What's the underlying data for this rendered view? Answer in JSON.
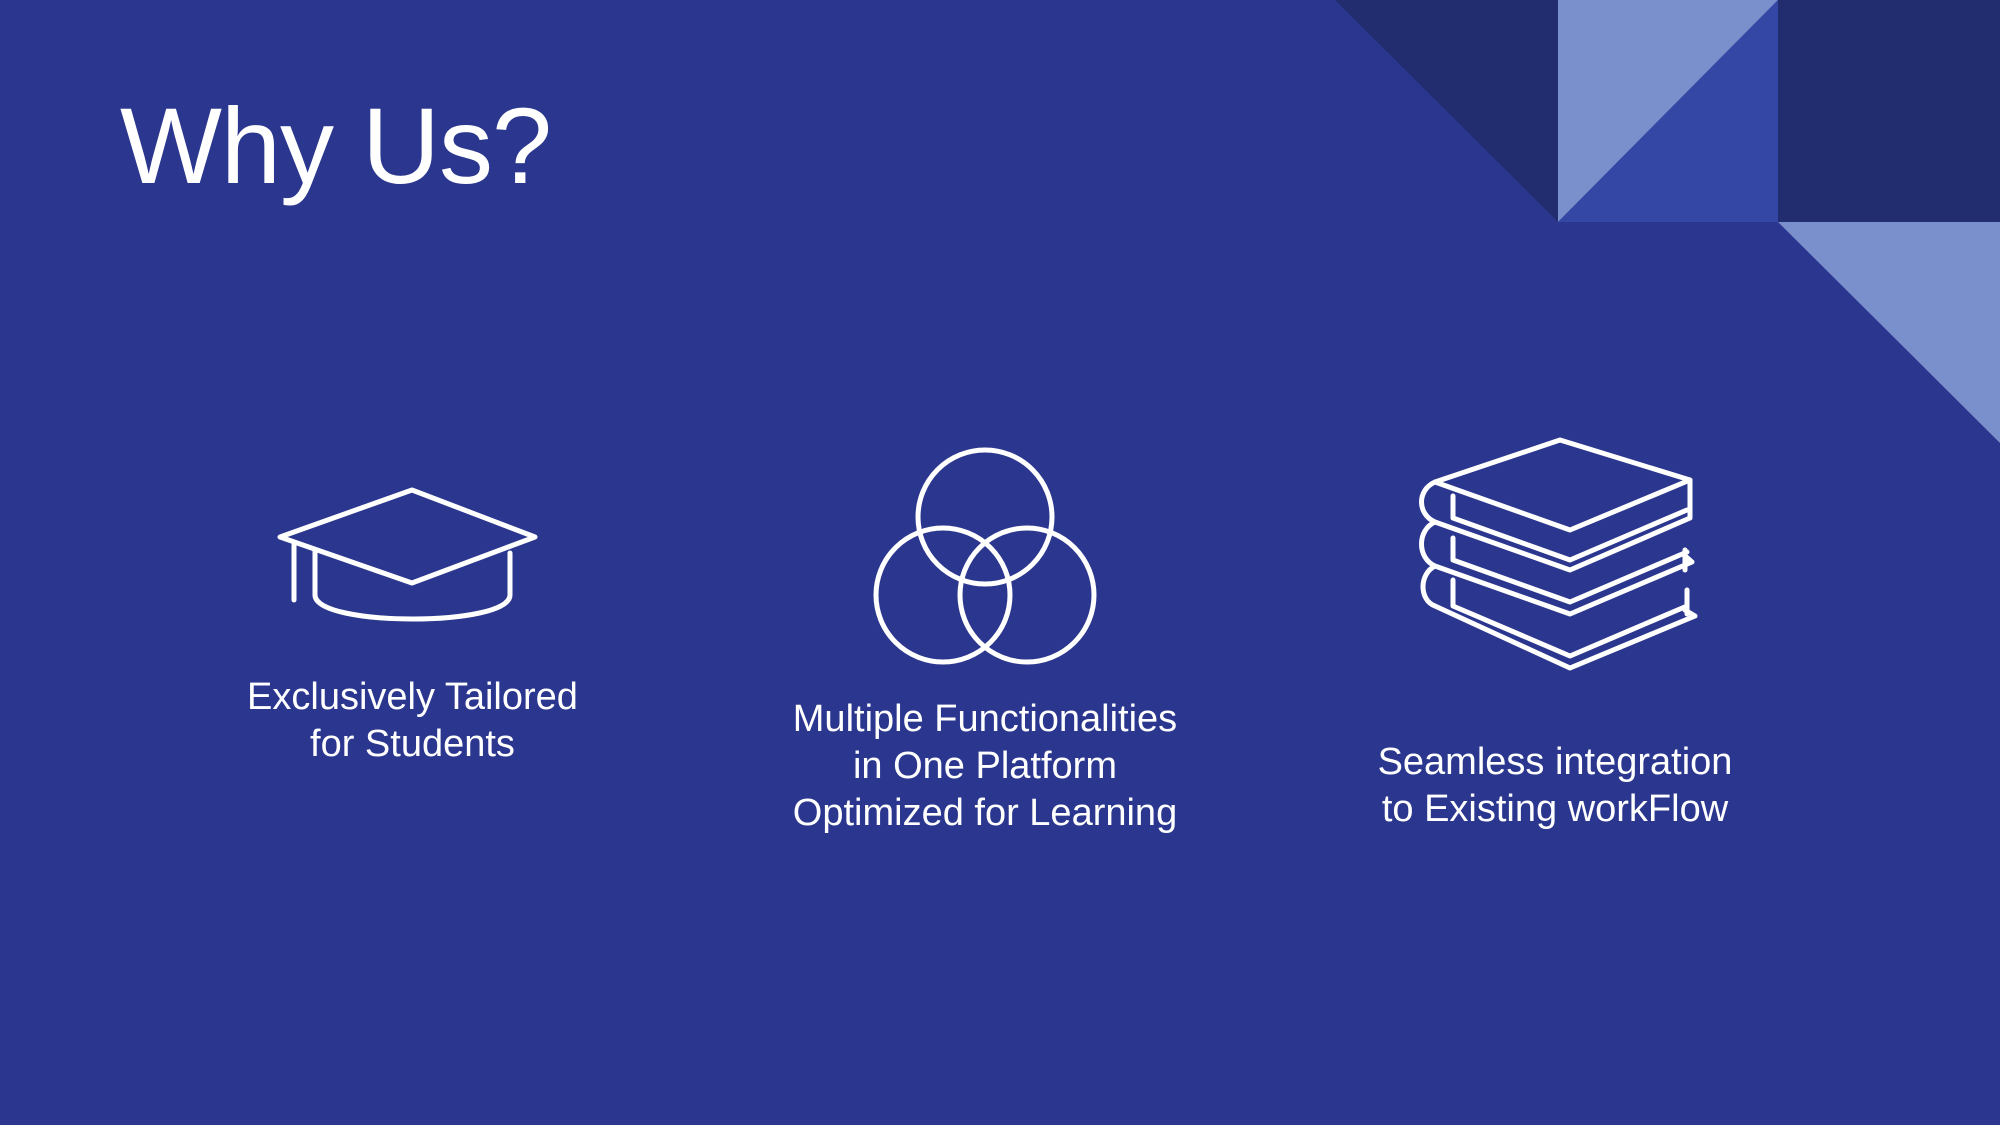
{
  "slide": {
    "title": "Why Us?",
    "colors": {
      "background": "#2b378e",
      "decor_dark": "#222d70",
      "decor_light": "#7a90cc",
      "decor_mid": "#3547a4",
      "text": "#ffffff"
    }
  },
  "features": [
    {
      "icon": "graduation-cap-icon",
      "lines": [
        "Exclusively Tailored",
        "for Students"
      ]
    },
    {
      "icon": "venn-diagram-icon",
      "lines": [
        "Multiple Functionalities",
        "in One Platform",
        "Optimized for Learning"
      ]
    },
    {
      "icon": "book-stack-icon",
      "lines": [
        "Seamless integration",
        "to Existing workFlow"
      ]
    }
  ]
}
